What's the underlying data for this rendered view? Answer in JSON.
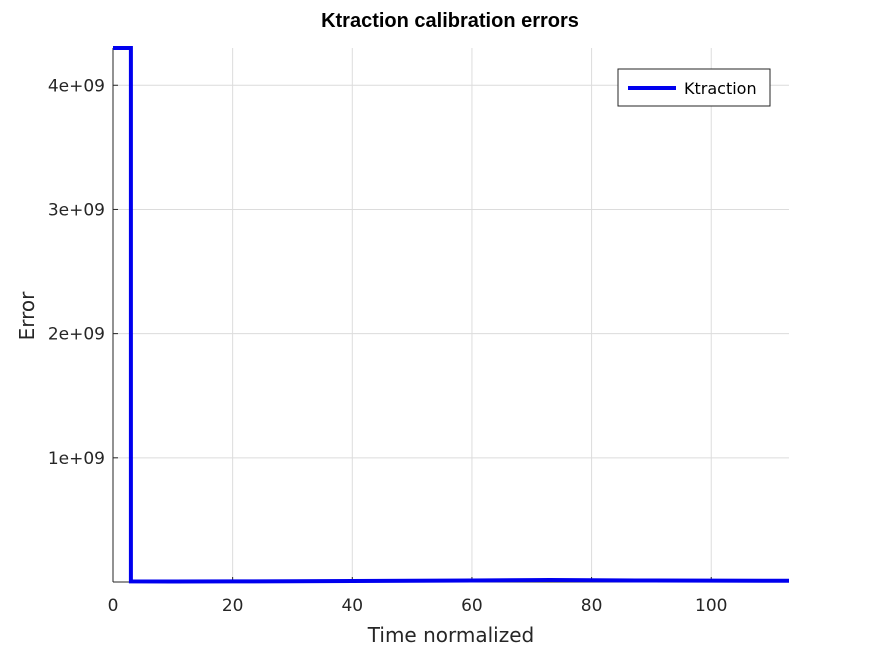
{
  "chart_data": {
    "type": "line",
    "title": "Ktraction calibration errors",
    "xlabel": "Time normalized",
    "ylabel": "Error",
    "xlim": [
      0,
      113
    ],
    "ylim": [
      0,
      4300000000
    ],
    "x_ticks": [
      0,
      20,
      40,
      60,
      80,
      100
    ],
    "x_tick_labels": [
      "0",
      "20",
      "40",
      "60",
      "80",
      "100"
    ],
    "y_ticks": [
      1000000000,
      2000000000,
      3000000000,
      4000000000
    ],
    "y_tick_labels": [
      "1e+09",
      "2e+09",
      "3e+09",
      "4e+09"
    ],
    "grid": true,
    "legend_position": "top-right",
    "series": [
      {
        "name": "Ktraction",
        "color": "#0000ee",
        "x": [
          0,
          3,
          3,
          10,
          20,
          30,
          40,
          50,
          60,
          70,
          73,
          80,
          90,
          100,
          113
        ],
        "y": [
          4300000000,
          4300000000,
          5000000,
          4000000,
          5000000,
          6000000,
          8000000,
          10000000,
          12000000,
          15000000,
          16000000,
          14000000,
          12000000,
          11000000,
          10000000
        ]
      }
    ]
  }
}
